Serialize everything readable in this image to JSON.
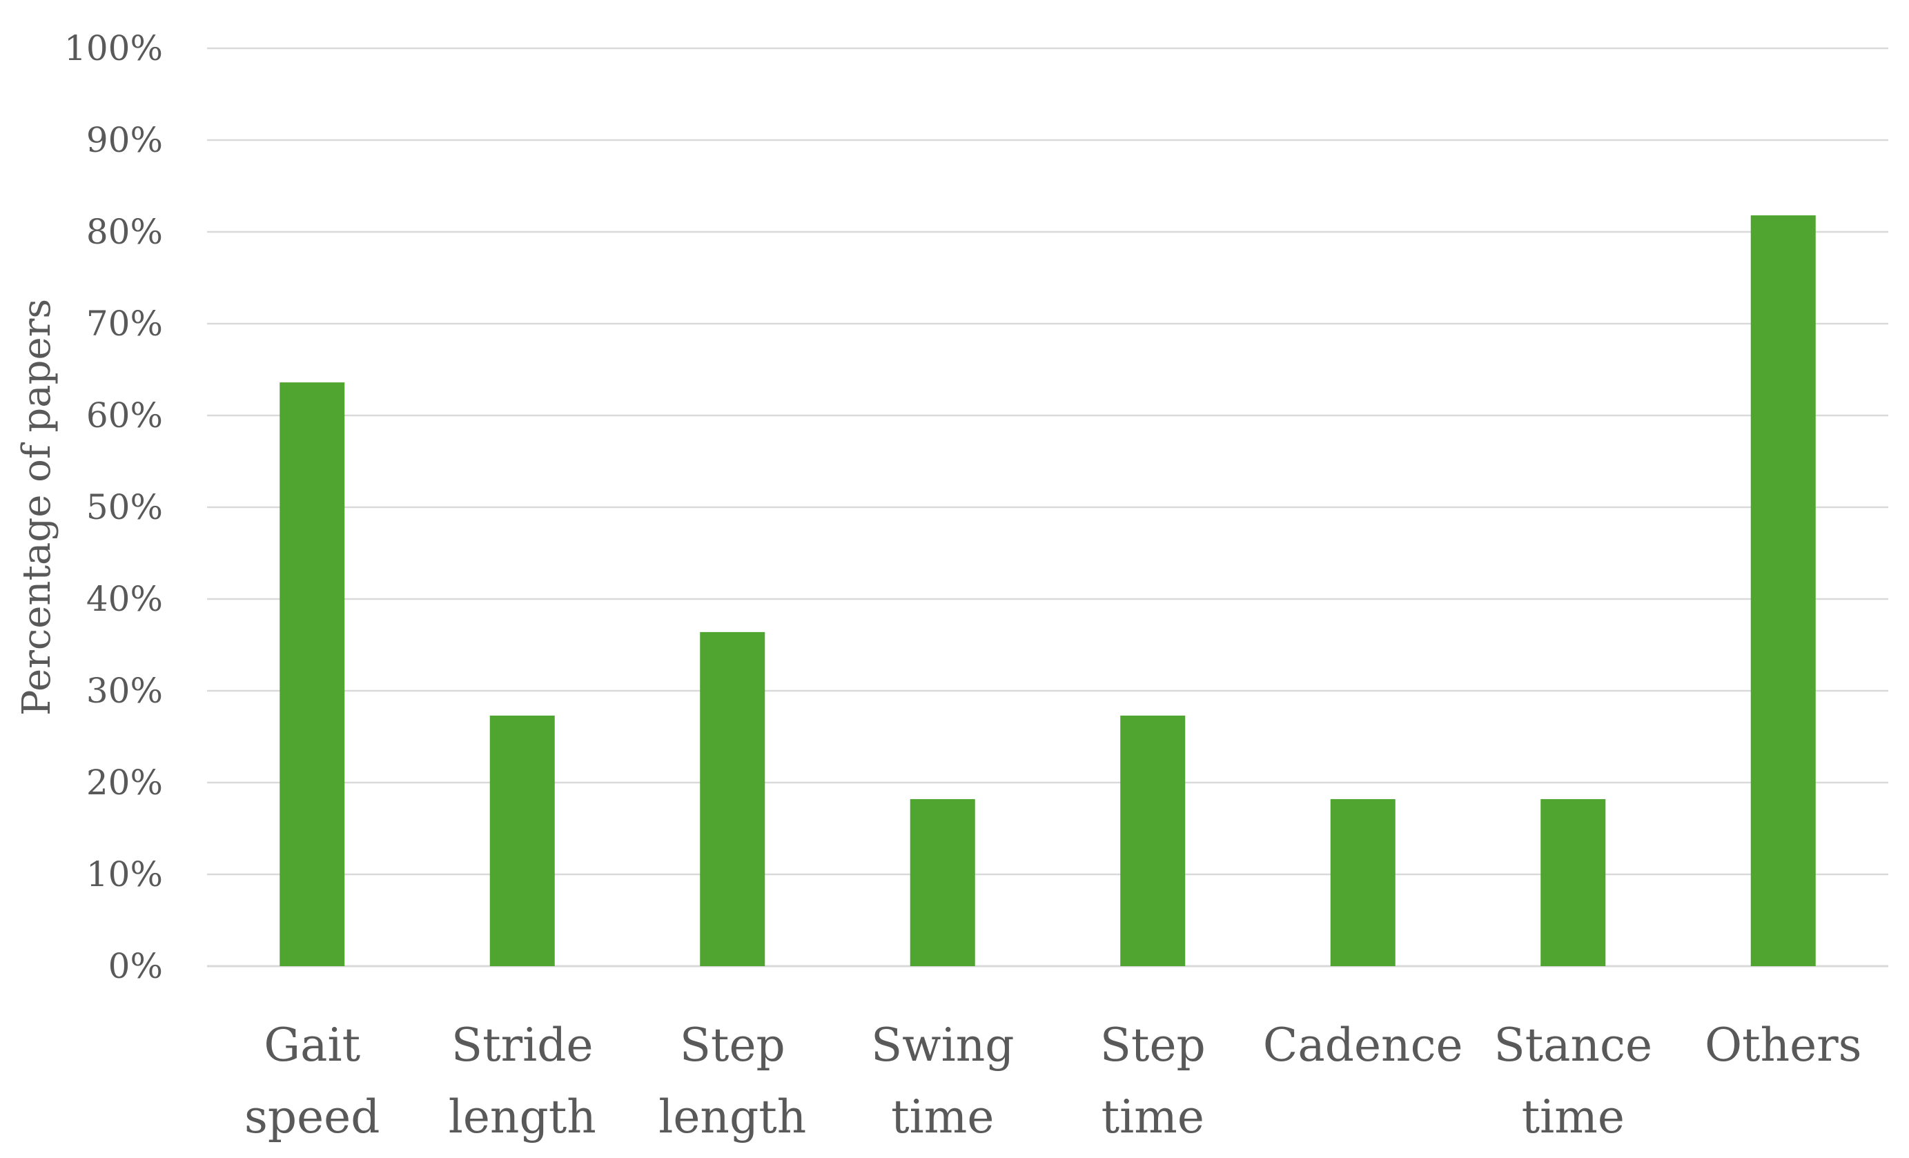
{
  "chart_data": {
    "type": "bar",
    "title": "",
    "xlabel": "",
    "ylabel": "Percentage of papers",
    "ylim": [
      0,
      100
    ],
    "y_ticks": [
      "0%",
      "10%",
      "20%",
      "30%",
      "40%",
      "50%",
      "60%",
      "70%",
      "80%",
      "90%",
      "100%"
    ],
    "categories": [
      [
        "Gait",
        "speed"
      ],
      [
        "Stride",
        "length"
      ],
      [
        "Step",
        "length"
      ],
      [
        "Swing",
        "time"
      ],
      [
        "Step",
        "time"
      ],
      [
        "Cadence"
      ],
      [
        "Stance",
        "time"
      ],
      [
        "Others"
      ]
    ],
    "values": [
      63.6,
      27.3,
      36.4,
      18.2,
      27.3,
      18.2,
      18.2,
      81.8
    ],
    "bar_color": "#4fa52f",
    "grid": true,
    "gridline_color": "#d9d9d9",
    "text_color": "#595959",
    "legend": "none"
  }
}
